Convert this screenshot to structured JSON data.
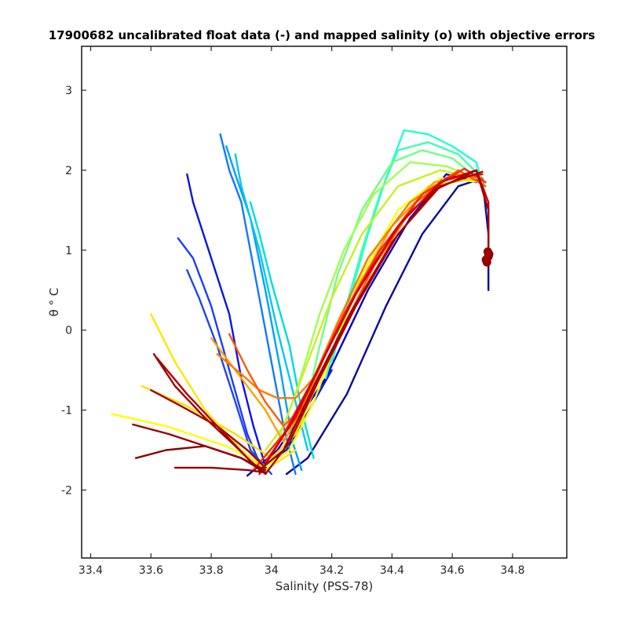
{
  "chart_data": {
    "type": "line",
    "title": "17900682 uncalibrated float data (-) and mapped salinity (o) with objective errors",
    "xlabel": "Salinity (PSS-78)",
    "ylabel": "θ ° C",
    "xlim": [
      33.37,
      34.98
    ],
    "ylim": [
      -2.85,
      3.55
    ],
    "x_ticks": [
      "33.4",
      "33.6",
      "33.8",
      "34",
      "34.2",
      "34.4",
      "34.6",
      "34.8"
    ],
    "x_tick_values": [
      33.4,
      33.6,
      33.8,
      34.0,
      34.2,
      34.4,
      34.6,
      34.8
    ],
    "y_ticks": [
      "-2",
      "-1",
      "0",
      "1",
      "2",
      "3"
    ],
    "y_tick_values": [
      -2,
      -1,
      0,
      1,
      2,
      3
    ],
    "grid": false,
    "legend": "none",
    "colormap": "jet",
    "colors": [
      "#00008f",
      "#0000ff",
      "#0080ff",
      "#00ffff",
      "#80ff80",
      "#ffff00",
      "#ff8000",
      "#ff0000",
      "#800000"
    ],
    "series": [
      {
        "color": "#0a0aa0",
        "points": [
          [
            34.05,
            -1.8
          ],
          [
            34.12,
            -1.6
          ],
          [
            34.25,
            -0.8
          ],
          [
            34.38,
            0.3
          ],
          [
            34.5,
            1.2
          ],
          [
            34.62,
            1.8
          ],
          [
            34.7,
            1.9
          ],
          [
            34.72,
            1.2
          ],
          [
            34.72,
            0.5
          ]
        ]
      },
      {
        "color": "#0000c8",
        "points": [
          [
            33.92,
            -1.82
          ],
          [
            34.02,
            -1.5
          ],
          [
            34.18,
            -0.6
          ],
          [
            34.32,
            0.5
          ],
          [
            34.46,
            1.4
          ],
          [
            34.58,
            1.95
          ],
          [
            34.68,
            1.85
          ]
        ]
      },
      {
        "color": "#0a14e6",
        "points": [
          [
            33.72,
            1.95
          ],
          [
            33.74,
            1.6
          ],
          [
            33.8,
            0.9
          ],
          [
            33.86,
            0.2
          ],
          [
            33.9,
            -0.6
          ],
          [
            33.94,
            -1.2
          ],
          [
            33.98,
            -1.7
          ],
          [
            34.05,
            -1.5
          ],
          [
            34.2,
            -0.5
          ]
        ]
      },
      {
        "color": "#1e3cff",
        "points": [
          [
            33.69,
            1.15
          ],
          [
            33.74,
            0.9
          ],
          [
            33.8,
            0.3
          ],
          [
            33.86,
            -0.5
          ],
          [
            33.92,
            -1.3
          ],
          [
            33.97,
            -1.75
          ]
        ]
      },
      {
        "color": "#1e46f0",
        "points": [
          [
            33.72,
            0.75
          ],
          [
            33.76,
            0.4
          ],
          [
            33.82,
            -0.2
          ],
          [
            33.88,
            -0.9
          ],
          [
            33.93,
            -1.5
          ],
          [
            34.0,
            -1.8
          ]
        ]
      },
      {
        "color": "#1478ff",
        "points": [
          [
            33.83,
            2.45
          ],
          [
            33.86,
            2.0
          ],
          [
            33.9,
            1.6
          ],
          [
            33.95,
            0.6
          ],
          [
            34.0,
            -0.4
          ],
          [
            34.04,
            -1.2
          ],
          [
            34.08,
            -1.8
          ]
        ]
      },
      {
        "color": "#00a0ff",
        "points": [
          [
            33.85,
            2.3
          ],
          [
            33.88,
            1.95
          ],
          [
            33.93,
            1.4
          ],
          [
            33.98,
            0.5
          ],
          [
            34.03,
            -0.5
          ],
          [
            34.07,
            -1.4
          ],
          [
            34.1,
            -1.75
          ]
        ]
      },
      {
        "color": "#00c8f0",
        "points": [
          [
            33.88,
            2.2
          ],
          [
            33.9,
            1.8
          ],
          [
            33.96,
            1.0
          ],
          [
            34.02,
            0.0
          ],
          [
            34.08,
            -0.9
          ],
          [
            34.12,
            -1.5
          ]
        ]
      },
      {
        "color": "#00dcdc",
        "points": [
          [
            33.93,
            1.6
          ],
          [
            33.96,
            1.2
          ],
          [
            34.0,
            0.6
          ],
          [
            34.06,
            -0.2
          ],
          [
            34.1,
            -1.0
          ],
          [
            34.14,
            -1.6
          ]
        ]
      },
      {
        "color": "#20ffd0",
        "points": [
          [
            34.2,
            -0.4
          ],
          [
            34.26,
            0.4
          ],
          [
            34.32,
            1.2
          ],
          [
            34.38,
            1.9
          ],
          [
            34.44,
            2.5
          ],
          [
            34.52,
            2.45
          ],
          [
            34.6,
            2.3
          ],
          [
            34.68,
            2.1
          ],
          [
            34.71,
            1.7
          ]
        ]
      },
      {
        "color": "#40ffb0",
        "points": [
          [
            34.18,
            -0.6
          ],
          [
            34.24,
            0.2
          ],
          [
            34.3,
            1.0
          ],
          [
            34.36,
            1.7
          ],
          [
            34.42,
            2.25
          ],
          [
            34.52,
            2.35
          ],
          [
            34.62,
            2.2
          ],
          [
            34.7,
            1.9
          ]
        ]
      },
      {
        "color": "#70ff80",
        "points": [
          [
            34.1,
            -1.2
          ],
          [
            34.16,
            -0.2
          ],
          [
            34.22,
            0.7
          ],
          [
            34.3,
            1.5
          ],
          [
            34.4,
            2.1
          ],
          [
            34.5,
            2.25
          ],
          [
            34.6,
            2.15
          ],
          [
            34.7,
            1.85
          ]
        ]
      },
      {
        "color": "#a0ff50",
        "points": [
          [
            34.02,
            -1.4
          ],
          [
            34.08,
            -0.8
          ],
          [
            34.16,
            0.2
          ],
          [
            34.24,
            1.0
          ],
          [
            34.34,
            1.7
          ],
          [
            34.46,
            2.1
          ],
          [
            34.58,
            2.05
          ],
          [
            34.68,
            1.9
          ]
        ]
      },
      {
        "color": "#c8f020",
        "points": [
          [
            33.98,
            -1.5
          ],
          [
            34.04,
            -1.2
          ],
          [
            34.12,
            -0.4
          ],
          [
            34.2,
            0.4
          ],
          [
            34.3,
            1.2
          ],
          [
            34.42,
            1.8
          ],
          [
            34.56,
            2.0
          ],
          [
            34.68,
            1.9
          ]
        ]
      },
      {
        "color": "#ffff00",
        "points": [
          [
            33.47,
            -1.05
          ],
          [
            33.65,
            -1.2
          ],
          [
            33.85,
            -1.45
          ],
          [
            33.98,
            -1.7
          ],
          [
            34.06,
            -1.5
          ],
          [
            34.14,
            -0.9
          ],
          [
            34.22,
            -0.1
          ],
          [
            34.3,
            0.7
          ],
          [
            34.42,
            1.5
          ],
          [
            34.56,
            1.9
          ],
          [
            34.7,
            1.85
          ]
        ]
      },
      {
        "color": "#ffdc00",
        "points": [
          [
            33.57,
            -0.7
          ],
          [
            33.72,
            -0.95
          ],
          [
            33.88,
            -1.3
          ],
          [
            34.0,
            -1.6
          ],
          [
            34.08,
            -1.3
          ],
          [
            34.16,
            -0.6
          ],
          [
            34.26,
            0.2
          ],
          [
            34.38,
            1.1
          ],
          [
            34.52,
            1.8
          ],
          [
            34.68,
            1.9
          ]
        ]
      },
      {
        "color": "#ffe600",
        "points": [
          [
            33.6,
            0.2
          ],
          [
            33.68,
            -0.4
          ],
          [
            33.78,
            -1.0
          ],
          [
            33.9,
            -1.5
          ],
          [
            33.98,
            -1.75
          ],
          [
            34.08,
            -1.5
          ]
        ]
      },
      {
        "color": "#ffa000",
        "points": [
          [
            33.8,
            -0.1
          ],
          [
            33.9,
            -0.6
          ],
          [
            33.98,
            -1.0
          ],
          [
            34.04,
            -1.4
          ],
          [
            34.1,
            -1.0
          ],
          [
            34.18,
            -0.3
          ],
          [
            34.28,
            0.5
          ],
          [
            34.4,
            1.3
          ],
          [
            34.54,
            1.85
          ],
          [
            34.68,
            1.95
          ]
        ]
      },
      {
        "color": "#ff7800",
        "points": [
          [
            33.82,
            -0.3
          ],
          [
            33.9,
            -0.55
          ],
          [
            33.96,
            -0.75
          ],
          [
            34.02,
            -0.85
          ],
          [
            34.08,
            -0.85
          ],
          [
            34.14,
            -0.6
          ],
          [
            34.22,
            0.1
          ],
          [
            34.32,
            0.9
          ],
          [
            34.46,
            1.6
          ],
          [
            34.6,
            1.95
          ],
          [
            34.7,
            1.9
          ]
        ]
      },
      {
        "color": "#ff5a00",
        "points": [
          [
            33.86,
            -0.05
          ],
          [
            33.92,
            -0.5
          ],
          [
            33.98,
            -0.9
          ],
          [
            34.04,
            -1.2
          ],
          [
            34.12,
            -0.9
          ],
          [
            34.22,
            -0.1
          ],
          [
            34.34,
            0.8
          ],
          [
            34.48,
            1.6
          ],
          [
            34.62,
            2.0
          ],
          [
            34.71,
            1.8
          ]
        ]
      },
      {
        "color": "#ff2800",
        "points": [
          [
            33.94,
            -1.75
          ],
          [
            34.04,
            -1.3
          ],
          [
            34.14,
            -0.6
          ],
          [
            34.24,
            0.2
          ],
          [
            34.36,
            1.0
          ],
          [
            34.5,
            1.7
          ],
          [
            34.64,
            2.02
          ],
          [
            34.71,
            1.85
          ]
        ]
      },
      {
        "color": "#f01400",
        "points": [
          [
            33.98,
            -1.65
          ],
          [
            34.08,
            -1.1
          ],
          [
            34.18,
            -0.3
          ],
          [
            34.3,
            0.6
          ],
          [
            34.44,
            1.4
          ],
          [
            34.58,
            1.9
          ],
          [
            34.7,
            1.95
          ]
        ]
      },
      {
        "color": "#d20000",
        "points": [
          [
            33.96,
            -1.8
          ],
          [
            34.06,
            -1.2
          ],
          [
            34.16,
            -0.45
          ],
          [
            34.28,
            0.45
          ],
          [
            34.42,
            1.3
          ],
          [
            34.56,
            1.85
          ],
          [
            34.68,
            2.0
          ],
          [
            34.72,
            1.6
          ],
          [
            34.72,
            0.9
          ]
        ]
      },
      {
        "color": "#b40000",
        "points": [
          [
            33.62,
            -0.35
          ],
          [
            33.72,
            -0.8
          ],
          [
            33.82,
            -1.2
          ],
          [
            33.92,
            -1.6
          ],
          [
            33.98,
            -1.8
          ],
          [
            34.06,
            -1.4
          ],
          [
            34.16,
            -0.6
          ],
          [
            34.28,
            0.3
          ],
          [
            34.42,
            1.2
          ],
          [
            34.56,
            1.8
          ],
          [
            34.7,
            1.98
          ]
        ]
      },
      {
        "color": "#a00000",
        "points": [
          [
            33.61,
            -0.3
          ],
          [
            33.68,
            -0.7
          ],
          [
            33.78,
            -1.1
          ],
          [
            33.88,
            -1.45
          ],
          [
            33.96,
            -1.75
          ],
          [
            34.04,
            -1.5
          ],
          [
            34.14,
            -0.7
          ],
          [
            34.26,
            0.2
          ],
          [
            34.4,
            1.1
          ],
          [
            34.54,
            1.75
          ],
          [
            34.68,
            2.0
          ],
          [
            34.72,
            1.5
          ],
          [
            34.72,
            0.9
          ]
        ]
      },
      {
        "color": "#8c0000",
        "points": [
          [
            33.55,
            -1.6
          ],
          [
            33.65,
            -1.5
          ],
          [
            33.78,
            -1.45
          ],
          [
            33.9,
            -1.6
          ],
          [
            33.98,
            -1.78
          ]
        ]
      },
      {
        "color": "#960000",
        "points": [
          [
            33.54,
            -1.18
          ],
          [
            33.66,
            -1.3
          ],
          [
            33.78,
            -1.45
          ],
          [
            33.9,
            -1.6
          ],
          [
            33.98,
            -1.75
          ]
        ]
      },
      {
        "color": "#a00a00",
        "points": [
          [
            33.6,
            -0.75
          ],
          [
            33.7,
            -0.95
          ],
          [
            33.82,
            -1.2
          ],
          [
            33.92,
            -1.5
          ],
          [
            33.98,
            -1.72
          ]
        ]
      },
      {
        "color": "#960000",
        "points": [
          [
            33.68,
            -1.72
          ],
          [
            33.8,
            -1.72
          ],
          [
            33.92,
            -1.75
          ],
          [
            33.98,
            -1.78
          ]
        ]
      }
    ],
    "mapped_points": [
      [
        34.715,
        0.85
      ],
      [
        34.72,
        0.92
      ],
      [
        34.718,
        0.98
      ],
      [
        34.712,
        0.88
      ],
      [
        34.722,
        0.95
      ]
    ]
  }
}
